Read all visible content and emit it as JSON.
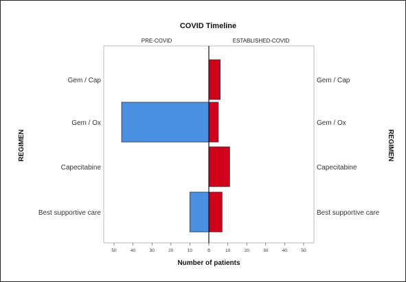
{
  "chart_data": {
    "type": "bar",
    "orientation": "horizontal",
    "layout": "back-to-back",
    "title": "COVID Timeline",
    "panels": [
      "PRE-COVID",
      "ESTABLISHED-COVID"
    ],
    "categories": [
      "Gem / Cap",
      "Gem / Ox",
      "Capecitabine",
      "Best supportive care"
    ],
    "series": [
      {
        "name": "PRE-COVID",
        "values": [
          0,
          46,
          0,
          10
        ],
        "color": "#4a90e2"
      },
      {
        "name": "ESTABLISHED-COVID",
        "values": [
          6,
          5,
          11,
          7
        ],
        "color": "#d0021b"
      }
    ],
    "xlabel": "Number of patients",
    "ylabel": "REGIMEN",
    "xlim": [
      0,
      50
    ],
    "xticks": [
      "50",
      "40",
      "30",
      "20",
      "10",
      "0",
      "0",
      "10",
      "20",
      "30",
      "40",
      "50"
    ],
    "grid": false
  }
}
